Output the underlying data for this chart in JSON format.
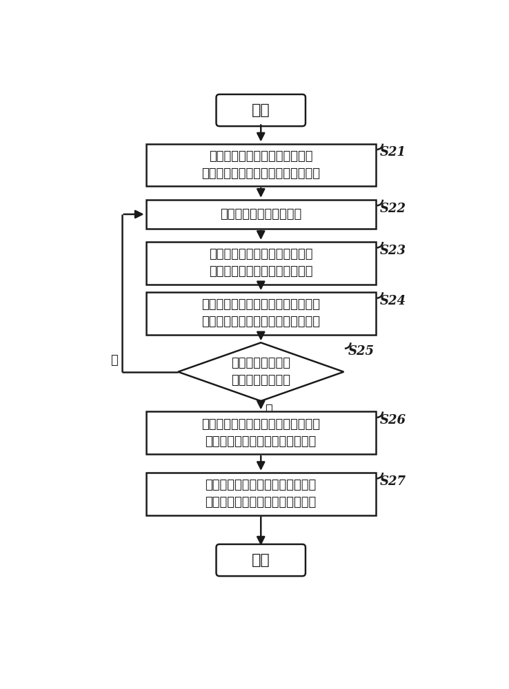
{
  "bg_color": "#ffffff",
  "line_color": "#1a1a1a",
  "text_color": "#1a1a1a",
  "label_color": "#000000",
  "start_text": "开始",
  "end_text": "结束",
  "s21_text": "实时侦测硬盘的当前转速，并将\n硬盘的当前转速值转速写入寄存器中",
  "s22_text": "实时监测硬盘的工作状态",
  "s23_text": "据硬盘的工作状态产生一个用于\n控制硬盘读写数据的转速控制值",
  "s24_text": "从寄存器中读取硬盘的转速值，并将\n硬盘的转速值与转速控制值进行比较",
  "s25_text": "硬盘的转速值是否\n等于转速控制值？",
  "s26_text": "利用信号发生器根据所述转速控制值\n产生一个控制硬盘转速的控制信号",
  "s27_text": "根据产生的控制信号控制转速马达\n的转速来自动调整硬盘的当前转速",
  "yes_text": "是",
  "no_text": "否",
  "labels": [
    "S21",
    "S22",
    "S23",
    "S24",
    "S25",
    "S26",
    "S27"
  ]
}
